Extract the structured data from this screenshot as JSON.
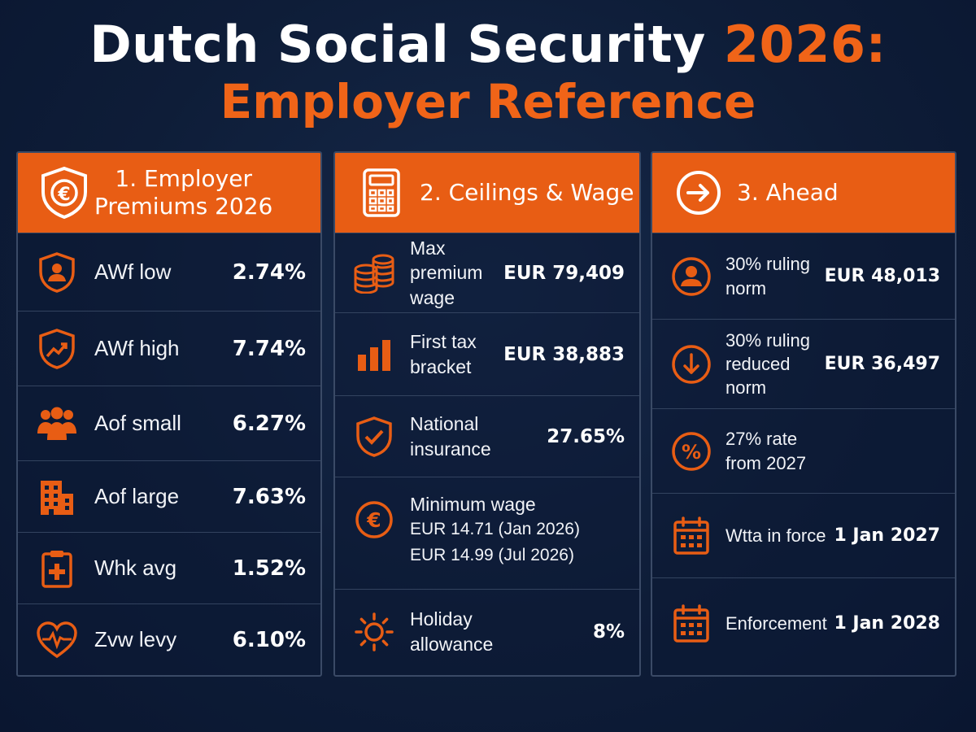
{
  "title": {
    "line1_main": "Dutch Social Security",
    "line1_accent": "2026:",
    "line2": "Employer Reference"
  },
  "colors": {
    "accent": "#e85d14",
    "background": "#0e1d38",
    "divider": "#33435f"
  },
  "panels": [
    {
      "heading_line1": "1. Employer",
      "heading_line2": "Premiums 2026",
      "icon": "euro-shield-icon",
      "rows": [
        {
          "icon": "person-shield-icon",
          "label": "AWf low",
          "value": "2.74%"
        },
        {
          "icon": "trend-shield-icon",
          "label": "AWf high",
          "value": "7.74%"
        },
        {
          "icon": "people-group-icon",
          "label": "Aof small",
          "value": "6.27%"
        },
        {
          "icon": "building-icon",
          "label": "Aof large",
          "value": "7.63%"
        },
        {
          "icon": "medical-clipboard-icon",
          "label": "Whk avg",
          "value": "1.52%"
        },
        {
          "icon": "heart-pulse-icon",
          "label": "Zvw levy",
          "value": "6.10%"
        }
      ]
    },
    {
      "heading": "2. Ceilings & Wage",
      "icon": "calculator-icon",
      "rows": [
        {
          "icon": "coin-stack-icon",
          "label_line1": "Max premium",
          "label_line2": "wage",
          "value": "EUR 79,409"
        },
        {
          "icon": "bar-chart-icon",
          "label_line1": "First tax",
          "label_line2": "bracket",
          "value": "EUR 38,883"
        },
        {
          "icon": "check-shield-icon",
          "label_line1": "National",
          "label_line2": "insurance",
          "value": "27.65%"
        },
        {
          "icon": "euro-coin-icon",
          "label_line1": "Minimum wage",
          "label_line2": "EUR 14.71 (Jan 2026)",
          "label_line3": "EUR 14.99 (Jul 2026)",
          "value": ""
        },
        {
          "icon": "sun-icon",
          "label_line1": "Holiday",
          "label_line2": "allowance",
          "value": "8%"
        }
      ]
    },
    {
      "heading": "3. Ahead",
      "icon": "arrow-right-circle-icon",
      "rows": [
        {
          "icon": "person-circle-icon",
          "label_line1": "30% ruling norm",
          "label_line2": "",
          "value": "EUR 48,013"
        },
        {
          "icon": "arrow-down-circle-icon",
          "label_line1": "30% ruling",
          "label_line2": "reduced norm",
          "value": "EUR 36,497"
        },
        {
          "icon": "percent-circle-icon",
          "label_line1": "27% rate",
          "label_line2": "from 2027",
          "value": ""
        },
        {
          "icon": "calendar-icon",
          "label_line1": "Wtta in force",
          "label_line2": "",
          "value": "1 Jan 2027"
        },
        {
          "icon": "calendar-icon",
          "label_line1": "Enforcement",
          "label_line2": "",
          "value": "1 Jan 2028"
        }
      ]
    }
  ]
}
